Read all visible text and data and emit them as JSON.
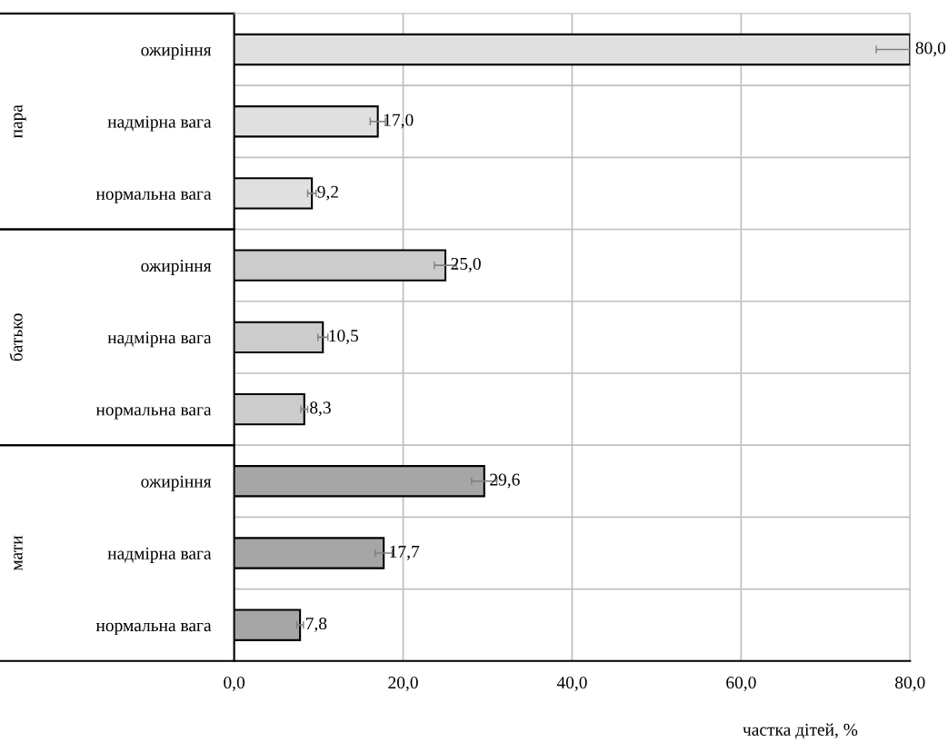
{
  "chart_data": {
    "type": "bar",
    "orientation": "horizontal",
    "xlabel": "частка дітей, %",
    "categories": [
      "ожиріння",
      "надмірна вага",
      "нормальна вага",
      "ожиріння",
      "надмірна вага",
      "нормальна вага",
      "ожиріння",
      "надмірна вага",
      "нормальна вага"
    ],
    "series": [
      {
        "color": "#e0e0e0",
        "values": [
          80.0,
          17.0,
          9.2,
          null,
          null,
          null,
          null,
          null,
          null
        ],
        "errors": [
          4.0,
          0.9,
          0.5,
          null,
          null,
          null,
          null,
          null,
          null
        ],
        "value_labels": [
          "80,0",
          "17,0",
          "9,2",
          null,
          null,
          null,
          null,
          null,
          null
        ]
      },
      {
        "color": "#cccccc",
        "values": [
          null,
          null,
          null,
          25.0,
          10.5,
          8.3,
          null,
          null,
          null
        ],
        "errors": [
          null,
          null,
          null,
          1.3,
          0.6,
          0.4,
          null,
          null,
          null
        ],
        "value_labels": [
          null,
          null,
          null,
          "25,0",
          "10,5",
          "8,3",
          null,
          null,
          null
        ]
      },
      {
        "color": "#a6a6a6",
        "values": [
          null,
          null,
          null,
          null,
          null,
          null,
          29.6,
          17.7,
          7.8
        ],
        "errors": [
          null,
          null,
          null,
          null,
          null,
          null,
          1.5,
          1.0,
          0.4
        ],
        "value_labels": [
          null,
          null,
          null,
          null,
          null,
          null,
          "29,6",
          "17,7",
          "7,8"
        ]
      }
    ],
    "xlim": [
      0,
      80
    ],
    "xticks": [
      {
        "value": 0,
        "label": "0,0"
      },
      {
        "value": 20,
        "label": "20,0"
      },
      {
        "value": 40,
        "label": "40,0"
      },
      {
        "value": 60,
        "label": "60,0"
      },
      {
        "value": 80,
        "label": "80,0"
      }
    ],
    "annotations": [
      "пара",
      "батько",
      "мати"
    ],
    "grid": true,
    "legend": false
  }
}
